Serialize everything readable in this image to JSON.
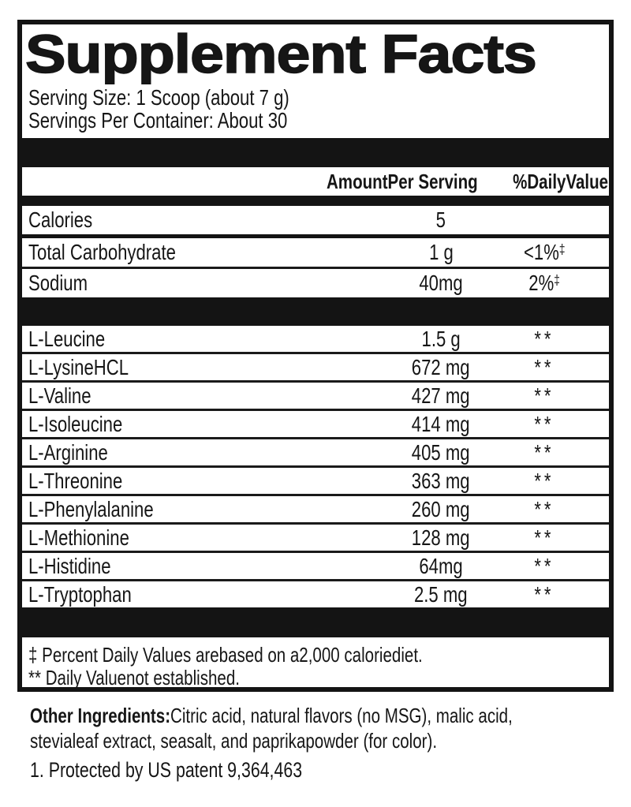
{
  "panel": {
    "title": "Supplement Facts",
    "serving_size": "Serving Size: 1 Scoop (about 7 g)",
    "servings_per_container": "Servings Per Container: About 30",
    "header": {
      "amount": "AmountPer Serving",
      "daily_value": "%DailyValue"
    },
    "nutrients": [
      {
        "name": "Calories",
        "amount": "5",
        "dv": "",
        "sup": ""
      },
      {
        "name": "Total Carbohydrate",
        "amount": "1 g",
        "dv": "<1%",
        "sup": "‡"
      },
      {
        "name": "Sodium",
        "amount": "40mg",
        "dv": "2%",
        "sup": "‡"
      }
    ],
    "amino_acids": [
      {
        "name": "L-Leucine",
        "amount": "1.5 g",
        "dv": "**",
        "sup": ""
      },
      {
        "name": "L-LysineHCL",
        "amount": "672 mg",
        "dv": "**",
        "sup": ""
      },
      {
        "name": "L-Valine",
        "amount": "427 mg",
        "dv": "**",
        "sup": ""
      },
      {
        "name": "L-Isoleucine",
        "amount": "414 mg",
        "dv": "**",
        "sup": ""
      },
      {
        "name": "L-Arginine",
        "amount": "405 mg",
        "dv": "**",
        "sup": ""
      },
      {
        "name": "L-Threonine",
        "amount": "363 mg",
        "dv": "**",
        "sup": ""
      },
      {
        "name": "L-Phenylalanine",
        "amount": "260 mg",
        "dv": "**",
        "sup": ""
      },
      {
        "name": "L-Methionine",
        "amount": "128 mg",
        "dv": "**",
        "sup": ""
      },
      {
        "name": "L-Histidine",
        "amount": "64mg",
        "dv": "**",
        "sup": ""
      },
      {
        "name": "L-Tryptophan",
        "amount": "2.5 mg",
        "dv": "**",
        "sup": ""
      }
    ],
    "footnotes": [
      "‡ Percent Daily Values arebased on a2,000 caloriediet.",
      "** Daily Valuenot established."
    ]
  },
  "below": {
    "other_ingredients_label": "Other Ingredients:",
    "other_ingredients_lines": [
      "Citric acid, natural flavors (no MSG), malic acid,",
      "stevialeaf extract, seasalt, and paprikapowder (for color)."
    ],
    "patent": "1. Protected by US patent 9,364,463"
  },
  "colors": {
    "ink": "#141414",
    "background": "#ffffff"
  }
}
